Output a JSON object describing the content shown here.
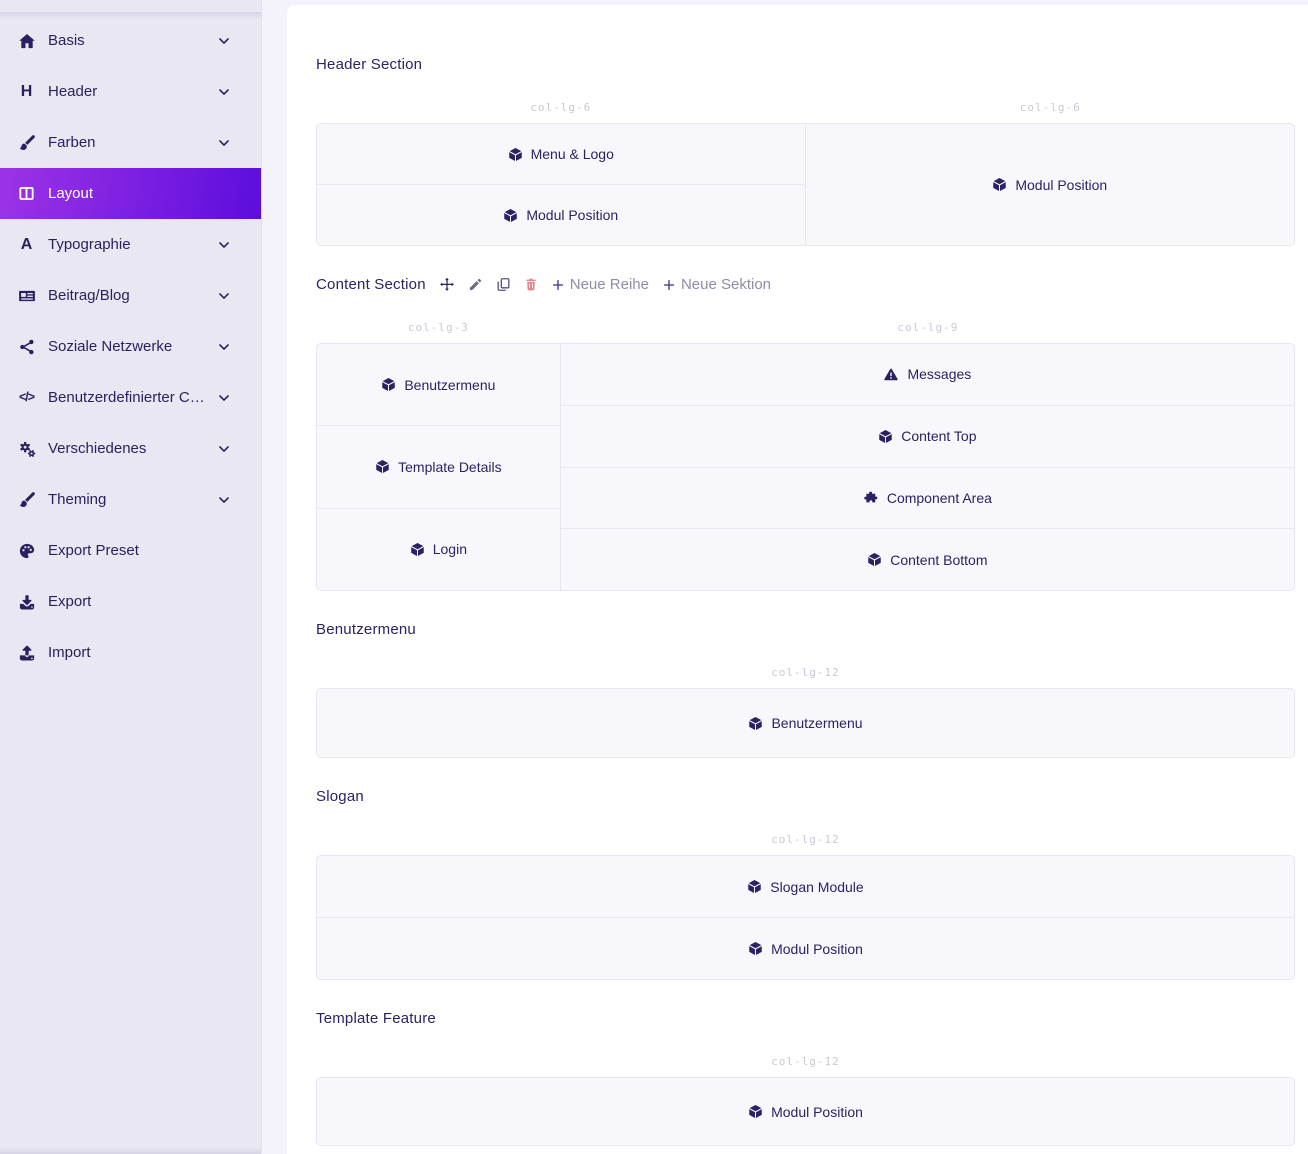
{
  "sidebar": {
    "items": [
      {
        "label": "Basis",
        "icon": "home-icon",
        "chevron": true,
        "active": false
      },
      {
        "label": "Header",
        "icon": "heading-icon",
        "chevron": true,
        "active": false
      },
      {
        "label": "Farben",
        "icon": "paintbrush-icon",
        "chevron": true,
        "active": false
      },
      {
        "label": "Layout",
        "icon": "columns-icon",
        "chevron": false,
        "active": true
      },
      {
        "label": "Typographie",
        "icon": "font-icon",
        "chevron": true,
        "active": false
      },
      {
        "label": "Beitrag/Blog",
        "icon": "newspaper-icon",
        "chevron": true,
        "active": false
      },
      {
        "label": "Soziale Netzwerke",
        "icon": "share-icon",
        "chevron": true,
        "active": false
      },
      {
        "label": "Benutzerdefinierter Code",
        "icon": "code-icon",
        "chevron": true,
        "active": false
      },
      {
        "label": "Verschiedenes",
        "icon": "gears-icon",
        "chevron": true,
        "active": false
      },
      {
        "label": "Theming",
        "icon": "brush-icon",
        "chevron": true,
        "active": false
      },
      {
        "label": "Export Preset",
        "icon": "palette-icon",
        "chevron": false,
        "active": false
      },
      {
        "label": "Export",
        "icon": "download-icon",
        "chevron": false,
        "active": false
      },
      {
        "label": "Import",
        "icon": "upload-icon",
        "chevron": false,
        "active": false
      }
    ]
  },
  "content": {
    "sections": [
      {
        "title": "Header Section",
        "toolbar": null,
        "columns": [
          {
            "label": "col-lg-6",
            "width_pct": 50,
            "modules": [
              {
                "icon": "cube-icon",
                "label": "Menu & Logo"
              },
              {
                "icon": "cube-icon",
                "label": "Modul Position"
              }
            ]
          },
          {
            "label": "col-lg-6",
            "width_pct": 50,
            "modules": [
              {
                "icon": "cube-icon",
                "label": "Modul Position"
              }
            ]
          }
        ]
      },
      {
        "title": "Content Section",
        "toolbar": {
          "buttons": [
            {
              "icon": "move-icon"
            },
            {
              "icon": "pencil-icon"
            },
            {
              "icon": "copy-icon"
            },
            {
              "icon": "trash-icon"
            }
          ],
          "actions": [
            {
              "icon": "plus-icon",
              "label": "Neue Reihe"
            },
            {
              "icon": "plus-icon",
              "label": "Neue Sektion"
            }
          ]
        },
        "columns": [
          {
            "label": "col-lg-3",
            "width_pct": 25,
            "modules": [
              {
                "icon": "cube-icon",
                "label": "Benutzermenu"
              },
              {
                "icon": "cube-icon",
                "label": "Template Details"
              },
              {
                "icon": "cube-icon",
                "label": "Login"
              }
            ]
          },
          {
            "label": "col-lg-9",
            "width_pct": 75,
            "modules": [
              {
                "icon": "warning-icon",
                "label": "Messages"
              },
              {
                "icon": "cube-icon",
                "label": "Content Top"
              },
              {
                "icon": "puzzle-icon",
                "label": "Component Area"
              },
              {
                "icon": "cube-icon",
                "label": "Content Bottom"
              }
            ]
          }
        ]
      },
      {
        "title": "Benutzermenu",
        "toolbar": null,
        "columns": [
          {
            "label": "col-lg-12",
            "width_pct": 100,
            "modules": [
              {
                "icon": "cube-icon",
                "label": "Benutzermenu"
              }
            ]
          }
        ]
      },
      {
        "title": "Slogan",
        "toolbar": null,
        "columns": [
          {
            "label": "col-lg-12",
            "width_pct": 100,
            "modules": [
              {
                "icon": "cube-icon",
                "label": "Slogan Module"
              },
              {
                "icon": "cube-icon",
                "label": "Modul Position"
              }
            ]
          }
        ]
      },
      {
        "title": "Template Feature",
        "toolbar": null,
        "columns": [
          {
            "label": "col-lg-12",
            "width_pct": 100,
            "modules": [
              {
                "icon": "cube-icon",
                "label": "Modul Position"
              }
            ]
          }
        ]
      }
    ]
  },
  "colors": {
    "accent_gradient_start": "#9d33e6",
    "accent_gradient_end": "#5c0ddd",
    "sidebar_bg": "#e9e8f2",
    "page_bg": "#f4f2fa",
    "card_bg": "#ffffff",
    "text_primary": "#2d2163",
    "module_bg": "#f8f8fc",
    "border": "#e7e6f0",
    "col_label": "#c9c8d6",
    "delete_icon": "#e2848d",
    "toolbar_muted": "#8f8ca6"
  }
}
